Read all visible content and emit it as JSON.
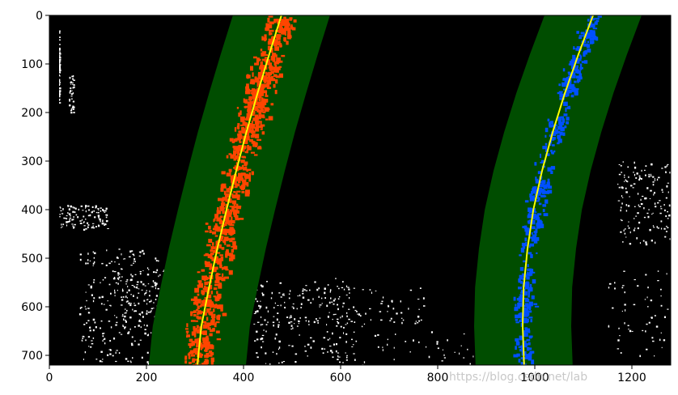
{
  "chart_data": {
    "type": "image",
    "title": "",
    "xlabel": "",
    "ylabel": "",
    "xlim": [
      0,
      1280
    ],
    "ylim": [
      720,
      0
    ],
    "x_ticks": [
      0,
      200,
      400,
      600,
      800,
      1000,
      1200
    ],
    "y_ticks": [
      0,
      100,
      200,
      300,
      400,
      500,
      600,
      700
    ],
    "grid": false,
    "legend": "none",
    "colors": {
      "background": "#000000",
      "search_window": "#004d00",
      "left_lane_pixels": "#ff4500",
      "right_lane_pixels": "#0050ff",
      "fit_line": "#ffff00",
      "noise_pixels": "#ffffff"
    },
    "search_margin": 100,
    "series": [
      {
        "lane": "left",
        "fit_line": {
          "y": [
            0,
            80,
            160,
            240,
            320,
            400,
            480,
            560,
            640,
            720
          ],
          "x": [
            478,
            453,
            429,
            406,
            385,
            365,
            346,
            329,
            313,
            305
          ]
        }
      },
      {
        "lane": "right",
        "fit_line": {
          "y": [
            0,
            80,
            160,
            240,
            320,
            400,
            480,
            560,
            640,
            720
          ],
          "x": [
            1120,
            1090,
            1062,
            1037,
            1015,
            997,
            985,
            977,
            975,
            978
          ]
        }
      }
    ]
  },
  "watermark": "https://blog.csdn.net/lab"
}
